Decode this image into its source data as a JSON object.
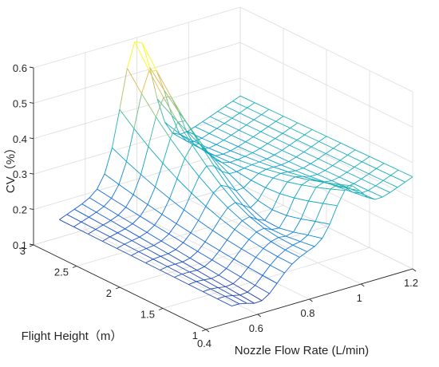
{
  "chart_data": {
    "type": "mesh3d",
    "title": "",
    "xlabel": "Nozzle Flow Rate (L/min)",
    "ylabel": "Flight Height（m）",
    "zlabel": "CV（%）",
    "x_ticks": [
      "0.4",
      "0.6",
      "0.8",
      "1",
      "1.2"
    ],
    "y_ticks": [
      "1",
      "1.5",
      "2",
      "2.5",
      "3"
    ],
    "z_ticks": [
      "0.1",
      "0.2",
      "0.3",
      "0.4",
      "0.5",
      "0.6"
    ],
    "xlim": [
      0.4,
      1.2
    ],
    "ylim": [
      1,
      3
    ],
    "zlim": [
      0.1,
      0.6
    ],
    "grid": true,
    "colormap": "parula",
    "x_range": [
      0.5,
      1.2
    ],
    "y_range": [
      1,
      3
    ],
    "z_range": [
      0.11,
      0.54
    ],
    "peak": {
      "x": 0.8,
      "y": 3.0,
      "z": 0.54
    }
  }
}
